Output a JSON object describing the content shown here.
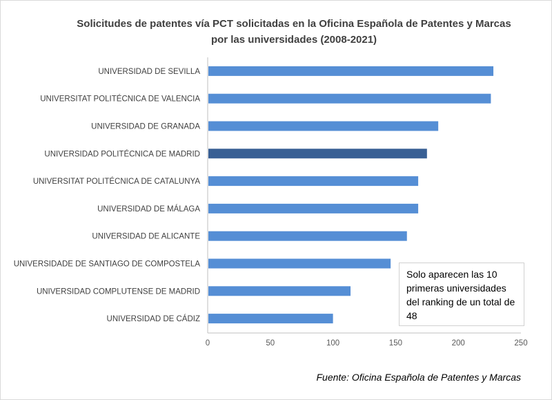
{
  "chart_data": {
    "type": "bar",
    "orientation": "horizontal",
    "title": "Solicitudes de patentes vía PCT solicitadas en la Oficina Española de Patentes y Marcas por las universidades (2008-2021)",
    "categories": [
      "UNIVERSIDAD DE SEVILLA",
      "UNIVERSITAT POLITÉCNICA DE VALENCIA",
      "UNIVERSIDAD DE GRANADA",
      "UNIVERSIDAD POLITÉCNICA DE MADRID",
      "UNIVERSITAT POLITÉCNICA DE CATALUNYA",
      "UNIVERSIDAD DE MÁLAGA",
      "UNIVERSIDAD DE ALICANTE",
      "UNIVERSIDADE DE SANTIAGO DE COMPOSTELA",
      "UNIVERSIDAD COMPLUTENSE DE MADRID",
      "UNIVERSIDAD DE CÁDIZ"
    ],
    "values": [
      228,
      226,
      184,
      175,
      168,
      168,
      159,
      146,
      114,
      100
    ],
    "highlight_index": 3,
    "colors": {
      "default": "#558ed5",
      "highlight": "#385f94"
    },
    "xlim": [
      0,
      250
    ],
    "xticks": [
      "0",
      "50",
      "100",
      "150",
      "200",
      "250"
    ],
    "grid": false,
    "legend": "none",
    "annotation": "Solo aparecen las 10 primeras universidades del ranking de un total de 48",
    "source": "Fuente: Oficina Española de Patentes y Marcas"
  }
}
